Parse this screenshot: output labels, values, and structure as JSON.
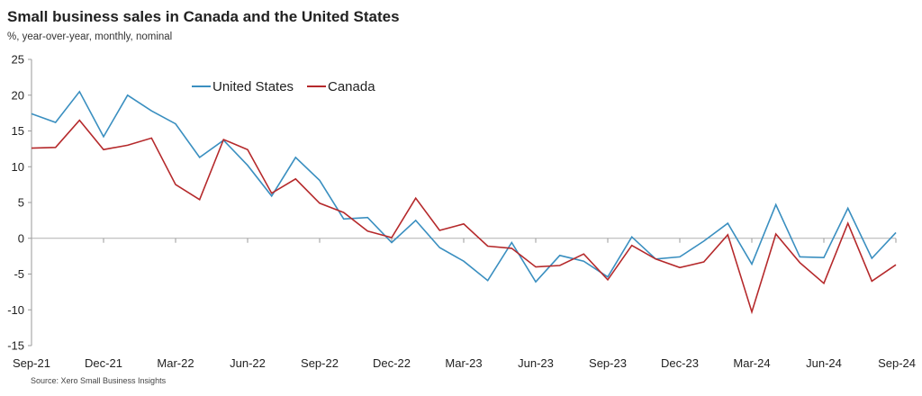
{
  "title": "Small business sales in Canada and the United States",
  "subtitle": "%, year-over-year, monthly, nominal",
  "source": "Source: Xero Small Business Insights",
  "chart_data": {
    "type": "line",
    "ylim": [
      -15,
      25
    ],
    "yticks": [
      25,
      20,
      15,
      10,
      5,
      0,
      -5,
      -10,
      -15
    ],
    "xtick_labels": [
      "Sep-21",
      "Dec-21",
      "Mar-22",
      "Jun-22",
      "Sep-22",
      "Dec-22",
      "Mar-23",
      "Jun-23",
      "Sep-23",
      "Dec-23",
      "Mar-24",
      "Jun-24",
      "Sep-24"
    ],
    "x": [
      "Sep-21",
      "Oct-21",
      "Nov-21",
      "Dec-21",
      "Jan-22",
      "Feb-22",
      "Mar-22",
      "Apr-22",
      "May-22",
      "Jun-22",
      "Jul-22",
      "Aug-22",
      "Sep-22",
      "Oct-22",
      "Nov-22",
      "Dec-22",
      "Jan-23",
      "Feb-23",
      "Mar-23",
      "Apr-23",
      "May-23",
      "Jun-23",
      "Jul-23",
      "Aug-23",
      "Sep-23",
      "Oct-23",
      "Nov-23",
      "Dec-23",
      "Jan-24",
      "Feb-24",
      "Mar-24",
      "Apr-24",
      "May-24",
      "Jun-24",
      "Jul-24",
      "Aug-24",
      "Sep-24"
    ],
    "legend_position": "top-left",
    "grid": false,
    "series": [
      {
        "name": "United States",
        "color": "#3a8fc0",
        "values": [
          17.4,
          16.2,
          20.5,
          14.2,
          20.0,
          17.8,
          16.0,
          11.3,
          13.7,
          10.2,
          5.9,
          11.3,
          8.1,
          2.7,
          2.9,
          -0.6,
          2.5,
          -1.3,
          -3.2,
          -5.9,
          -0.6,
          -6.1,
          -2.4,
          -3.2,
          -5.4,
          0.2,
          -2.9,
          -2.6,
          -0.4,
          2.1,
          -3.6,
          4.7,
          -2.6,
          -2.7,
          4.2,
          -2.8,
          0.8
        ]
      },
      {
        "name": "Canada",
        "color": "#b5292b",
        "values": [
          12.6,
          12.7,
          16.5,
          12.4,
          13.0,
          14.0,
          7.5,
          5.4,
          13.8,
          12.4,
          6.3,
          8.3,
          4.9,
          3.6,
          1.0,
          0.1,
          5.6,
          1.1,
          2.0,
          -1.1,
          -1.4,
          -4.0,
          -3.8,
          -2.2,
          -5.8,
          -1.0,
          -2.9,
          -4.1,
          -3.3,
          0.5,
          -10.3,
          0.6,
          -3.4,
          -6.3,
          2.1,
          -6.0,
          -3.7
        ]
      }
    ]
  }
}
